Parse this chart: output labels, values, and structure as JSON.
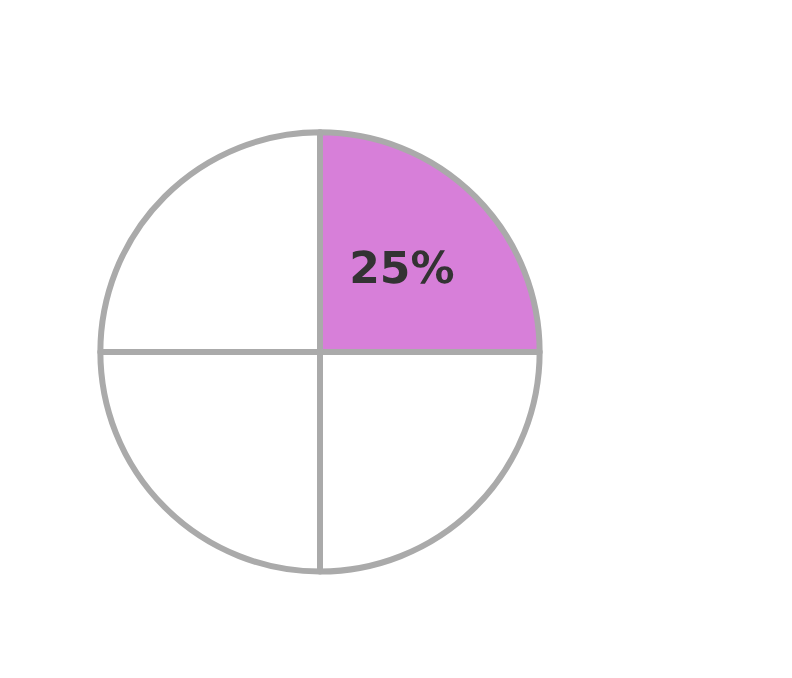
{
  "chart_data": {
    "type": "pie",
    "categories": [
      null,
      null,
      null,
      null
    ],
    "values": [
      25,
      25,
      25,
      25
    ],
    "colors": [
      "#d77fd9",
      "#ffffff",
      "#ffffff",
      "#ffffff"
    ],
    "value_labels": [
      "25%",
      null,
      null,
      null
    ]
  }
}
